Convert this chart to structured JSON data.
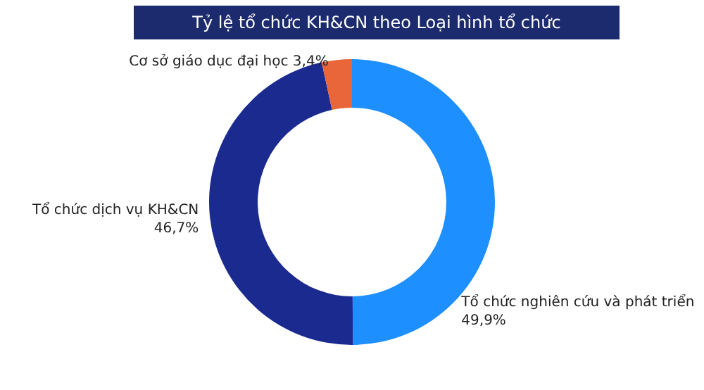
{
  "chart_data": {
    "type": "donut",
    "title": "Tỷ lệ tổ chức KH&CN theo Loại hình tổ chức",
    "categories": [
      "Tổ chức nghiên cứu và phát triển",
      "Tổ chức dịch vụ KH&CN",
      "Cơ sở giáo dục đại học"
    ],
    "values": [
      49.9,
      46.7,
      3.4
    ],
    "colors": [
      "#1e8fff",
      "#1b2a8f",
      "#e8663a"
    ],
    "value_labels": [
      "49,9%",
      "46,7%",
      "3,4%"
    ],
    "legend": false
  }
}
